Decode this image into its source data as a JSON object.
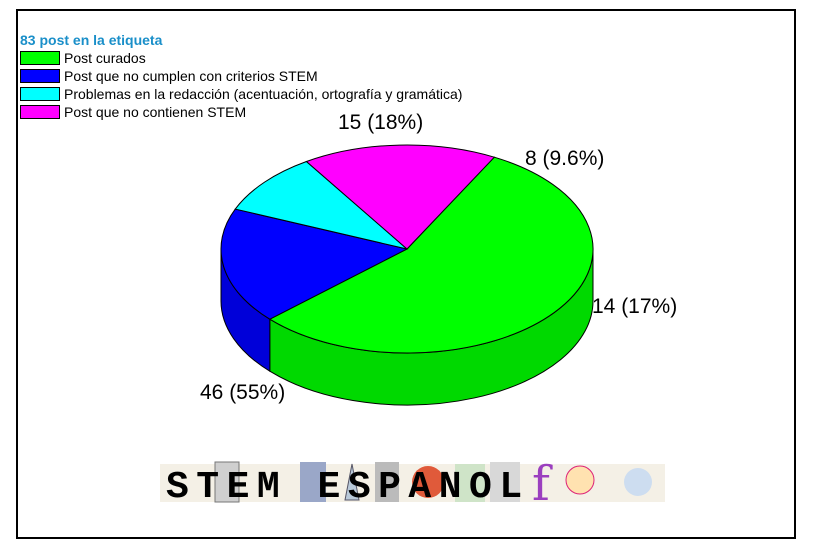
{
  "chart_data": {
    "type": "pie",
    "legend_title": "83 post en la etiqueta",
    "legend_placement": "top-left",
    "slices": [
      {
        "name": "Post curados",
        "value": 46,
        "label": "46 (55%)",
        "color": "#00ff00"
      },
      {
        "name": "Post que no cumplen con criterios STEM",
        "value": 15,
        "label": "15 (18%)",
        "color": "#0000ff"
      },
      {
        "name": "Problemas en la redacción (acentuación, ortografía y gramática)",
        "value": 8,
        "label": "8 (9.6%)",
        "color": "#00ffff"
      },
      {
        "name": "Post que no contienen STEM",
        "value": 14,
        "label": "14 (17%)",
        "color": "#ff00ff"
      }
    ]
  },
  "logo": {
    "text": "STEM ESPANOL"
  }
}
